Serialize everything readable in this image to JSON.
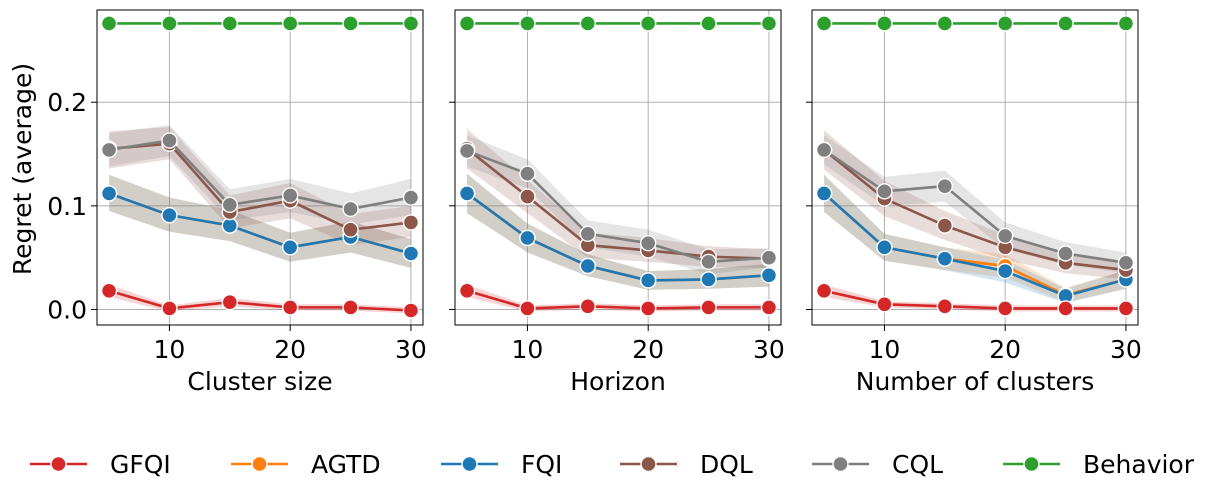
{
  "chart_data": {
    "type": "line",
    "ylabel": "Regret (average)",
    "ylim": [
      -0.015,
      0.289
    ],
    "yticks": [
      0.0,
      0.1,
      0.2
    ],
    "ytick_labels": [
      "0.0",
      "0.1",
      "0.2"
    ],
    "xlim": [
      4.0,
      31.0
    ],
    "xticks": [
      10,
      20,
      30
    ],
    "xtick_labels": [
      "10",
      "20",
      "30"
    ],
    "grid": true,
    "legend_position": "bottom",
    "series_styles": [
      {
        "name": "GFQI",
        "color": "#d62728"
      },
      {
        "name": "AGTD",
        "color": "#ff7f0e"
      },
      {
        "name": "FQI",
        "color": "#1f77b4"
      },
      {
        "name": "DQL",
        "color": "#8c564b"
      },
      {
        "name": "CQL",
        "color": "#7f7f7f"
      },
      {
        "name": "Behavior",
        "color": "#2ca02c"
      }
    ],
    "panels": [
      {
        "xlabel": "Cluster size",
        "x": [
          5,
          10,
          15,
          20,
          25,
          30
        ],
        "series": [
          {
            "name": "GFQI",
            "values": [
              0.018,
              0.001,
              0.007,
              0.002,
              0.002,
              -0.001
            ],
            "lower": [
              0.012,
              -0.002,
              0.003,
              -0.001,
              -0.001,
              -0.004
            ],
            "upper": [
              0.024,
              0.004,
              0.011,
              0.005,
              0.005,
              0.002
            ]
          },
          {
            "name": "AGTD",
            "values": [
              0.112,
              0.091,
              0.081,
              0.06,
              0.07,
              0.054
            ],
            "lower": [
              0.095,
              0.075,
              0.066,
              0.046,
              0.055,
              0.04
            ],
            "upper": [
              0.13,
              0.108,
              0.096,
              0.074,
              0.085,
              0.068
            ]
          },
          {
            "name": "FQI",
            "values": [
              0.112,
              0.091,
              0.081,
              0.06,
              0.07,
              0.054
            ],
            "lower": [
              0.095,
              0.075,
              0.066,
              0.046,
              0.055,
              0.04
            ],
            "upper": [
              0.13,
              0.108,
              0.096,
              0.074,
              0.085,
              0.068
            ]
          },
          {
            "name": "DQL",
            "values": [
              0.155,
              0.16,
              0.094,
              0.105,
              0.077,
              0.084
            ],
            "lower": [
              0.136,
              0.145,
              0.078,
              0.088,
              0.062,
              0.07
            ],
            "upper": [
              0.172,
              0.176,
              0.11,
              0.122,
              0.092,
              0.1
            ]
          },
          {
            "name": "CQL",
            "values": [
              0.154,
              0.163,
              0.101,
              0.11,
              0.097,
              0.108
            ],
            "lower": [
              0.138,
              0.148,
              0.086,
              0.094,
              0.082,
              0.091
            ],
            "upper": [
              0.17,
              0.178,
              0.116,
              0.126,
              0.112,
              0.126
            ]
          },
          {
            "name": "Behavior",
            "values": [
              0.276,
              0.276,
              0.276,
              0.276,
              0.276,
              0.276
            ]
          }
        ]
      },
      {
        "xlabel": "Horizon",
        "x": [
          5,
          10,
          15,
          20,
          25,
          30
        ],
        "series": [
          {
            "name": "GFQI",
            "values": [
              0.018,
              0.001,
              0.003,
              0.001,
              0.002,
              0.002
            ],
            "lower": [
              0.012,
              -0.002,
              0.0,
              -0.002,
              -0.001,
              -0.001
            ],
            "upper": [
              0.024,
              0.004,
              0.006,
              0.004,
              0.005,
              0.005
            ]
          },
          {
            "name": "AGTD",
            "values": [
              0.112,
              0.069,
              0.042,
              0.028,
              0.029,
              0.033
            ],
            "lower": [
              0.093,
              0.055,
              0.032,
              0.019,
              0.02,
              0.022
            ],
            "upper": [
              0.131,
              0.083,
              0.053,
              0.037,
              0.039,
              0.044
            ]
          },
          {
            "name": "FQI",
            "values": [
              0.112,
              0.069,
              0.042,
              0.028,
              0.029,
              0.033
            ],
            "lower": [
              0.093,
              0.055,
              0.032,
              0.019,
              0.02,
              0.022
            ],
            "upper": [
              0.131,
              0.083,
              0.053,
              0.037,
              0.039,
              0.044
            ]
          },
          {
            "name": "DQL",
            "values": [
              0.155,
              0.109,
              0.062,
              0.057,
              0.051,
              0.049
            ],
            "lower": [
              0.136,
              0.093,
              0.05,
              0.046,
              0.041,
              0.04
            ],
            "upper": [
              0.174,
              0.125,
              0.074,
              0.069,
              0.061,
              0.058
            ]
          },
          {
            "name": "CQL",
            "values": [
              0.153,
              0.131,
              0.073,
              0.064,
              0.046,
              0.05
            ],
            "lower": [
              0.138,
              0.117,
              0.06,
              0.051,
              0.034,
              0.041
            ],
            "upper": [
              0.168,
              0.145,
              0.086,
              0.077,
              0.058,
              0.059
            ]
          },
          {
            "name": "Behavior",
            "values": [
              0.276,
              0.276,
              0.276,
              0.276,
              0.276,
              0.276
            ]
          }
        ]
      },
      {
        "xlabel": "Number of clusters",
        "x": [
          5,
          10,
          15,
          20,
          25,
          30
        ],
        "series": [
          {
            "name": "GFQI",
            "values": [
              0.018,
              0.005,
              0.003,
              0.001,
              0.001,
              0.001
            ],
            "lower": [
              0.012,
              0.002,
              0.0,
              -0.002,
              -0.002,
              -0.002
            ],
            "upper": [
              0.024,
              0.008,
              0.006,
              0.004,
              0.004,
              0.004
            ]
          },
          {
            "name": "AGTD",
            "values": [
              0.112,
              0.06,
              0.049,
              0.042,
              0.014,
              0.029
            ],
            "lower": [
              0.094,
              0.047,
              0.038,
              0.031,
              0.007,
              0.02
            ],
            "upper": [
              0.13,
              0.073,
              0.06,
              0.053,
              0.021,
              0.038
            ]
          },
          {
            "name": "FQI",
            "values": [
              0.112,
              0.06,
              0.049,
              0.037,
              0.013,
              0.029
            ],
            "lower": [
              0.094,
              0.047,
              0.038,
              0.026,
              0.006,
              0.02
            ],
            "upper": [
              0.13,
              0.073,
              0.06,
              0.048,
              0.02,
              0.038
            ]
          },
          {
            "name": "DQL",
            "values": [
              0.154,
              0.107,
              0.081,
              0.06,
              0.045,
              0.038
            ],
            "lower": [
              0.135,
              0.09,
              0.067,
              0.048,
              0.035,
              0.029
            ],
            "upper": [
              0.173,
              0.124,
              0.095,
              0.072,
              0.055,
              0.047
            ]
          },
          {
            "name": "CQL",
            "values": [
              0.154,
              0.114,
              0.119,
              0.071,
              0.054,
              0.045
            ],
            "lower": [
              0.14,
              0.1,
              0.104,
              0.058,
              0.043,
              0.035
            ],
            "upper": [
              0.168,
              0.128,
              0.134,
              0.084,
              0.065,
              0.055
            ]
          },
          {
            "name": "Behavior",
            "values": [
              0.276,
              0.276,
              0.276,
              0.276,
              0.276,
              0.276
            ]
          }
        ]
      }
    ]
  }
}
